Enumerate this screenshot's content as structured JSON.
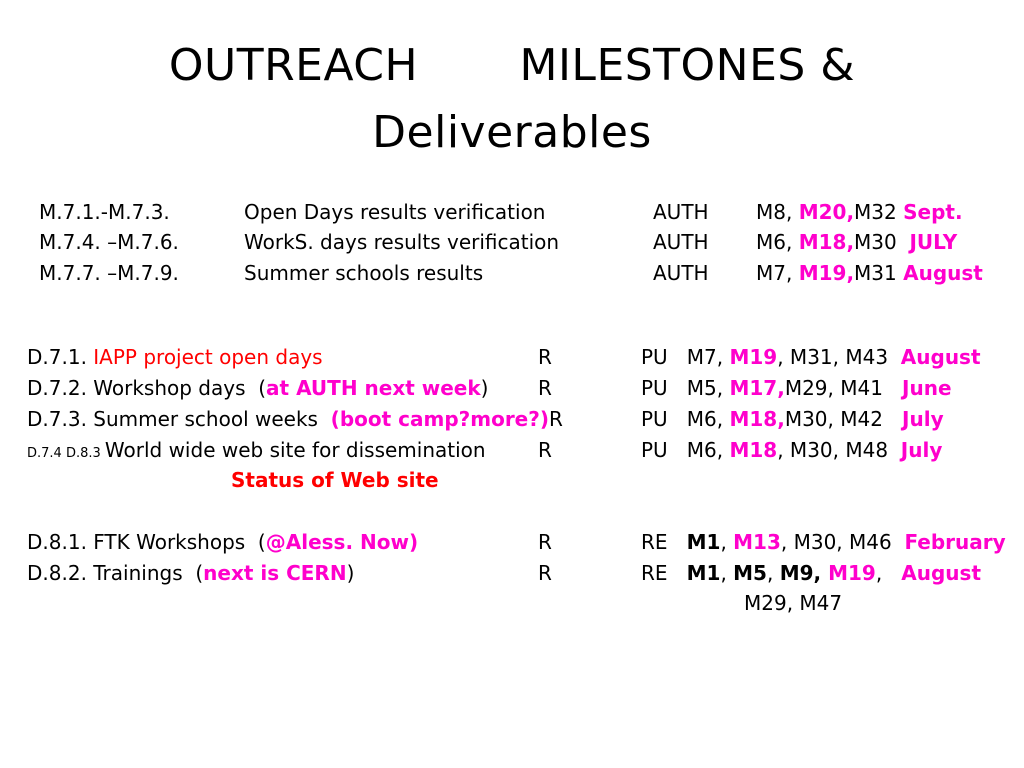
{
  "title": {
    "line1": "OUTREACH       MILESTONES &",
    "line2": "Deliverables"
  },
  "milestones": [
    {
      "id": "M.7.1.-M.7.3.",
      "desc": "Open Days results verification",
      "partner": "AUTH",
      "m1": "M8, ",
      "m2": "M20,",
      "m3": "M32 ",
      "month": "Sept."
    },
    {
      "id": "M.7.4. –M.7.6.",
      "desc": "WorkS. days results verification",
      "partner": "AUTH",
      "m1": "M6, ",
      "m2": "M18,",
      "m3": "M30  ",
      "month": "JULY"
    },
    {
      "id": "M.7.7. –M.7.9.",
      "desc": "Summer schools results",
      "partner": "AUTH",
      "m1": "M7, ",
      "m2": "M19,",
      "m3": "M31 ",
      "month": "August"
    }
  ],
  "deliverables": {
    "d1": {
      "prefix": "D.7.1. ",
      "highlight": "IAPP project open days",
      "type": "R",
      "dissem": "PU   ",
      "m1": "M7, ",
      "m2": "M19",
      "m3": ", M31, M43  ",
      "month": "August"
    },
    "d2": {
      "prefix": "D.7.2. Workshop days  (",
      "highlight": "at AUTH next week",
      "suffix": ")",
      "type": "R",
      "dissem": "PU   ",
      "m1": "M5, ",
      "m2": "M17,",
      "m3": "M29, M41   ",
      "month": "June"
    },
    "d3": {
      "prefix": "D.7.3. Summer school weeks  ",
      "highlight": "(boot camp?more?)",
      "suffix": "R",
      "dissem": "PU   ",
      "m1": "M6, ",
      "m2": "M18,",
      "m3": "M30, M42   ",
      "month": "July"
    },
    "d4": {
      "small_prefix": "D.7.4 D.8.3 ",
      "text": "World wide web site for dissemination",
      "type": "R",
      "dissem": "PU   ",
      "m1": "M6, ",
      "m2": "M18",
      "m3": ", M30, M48  ",
      "month": "July"
    },
    "web_status": "Status of Web site",
    "d5": {
      "prefix": "D.8.1. FTK Workshops  (",
      "highlight": "@Aless. Now)",
      "type": "R",
      "dissem": "RE   ",
      "m1": "M1",
      "m2": ", ",
      "m3": "M13",
      "m4": ", M30, M46  ",
      "month": "February"
    },
    "d6": {
      "prefix": "D.8.2. Trainings  (",
      "highlight": "next is CERN",
      "suffix": ")",
      "type": "R",
      "dissem": "RE   ",
      "m1": "M1",
      "m2": ", ",
      "m3": "M5",
      "m4": ", ",
      "m5": "M9, ",
      "m6": "M19",
      "m7": ",   ",
      "month": "August",
      "cont": "M29, M47"
    }
  }
}
